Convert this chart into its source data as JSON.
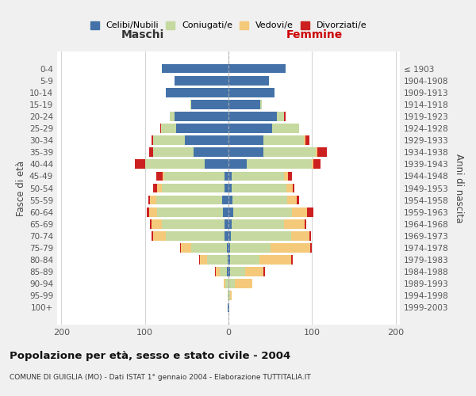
{
  "age_groups": [
    "0-4",
    "5-9",
    "10-14",
    "15-19",
    "20-24",
    "25-29",
    "30-34",
    "35-39",
    "40-44",
    "45-49",
    "50-54",
    "55-59",
    "60-64",
    "65-69",
    "70-74",
    "75-79",
    "80-84",
    "85-89",
    "90-94",
    "95-99",
    "100+"
  ],
  "birth_years": [
    "1999-2003",
    "1994-1998",
    "1989-1993",
    "1984-1988",
    "1979-1983",
    "1974-1978",
    "1969-1973",
    "1964-1968",
    "1959-1963",
    "1954-1958",
    "1949-1953",
    "1944-1948",
    "1939-1943",
    "1934-1938",
    "1929-1933",
    "1924-1928",
    "1919-1923",
    "1914-1918",
    "1909-1913",
    "1904-1908",
    "≤ 1903"
  ],
  "male_celibe": [
    80,
    65,
    75,
    45,
    65,
    63,
    52,
    42,
    28,
    5,
    5,
    8,
    7,
    5,
    5,
    2,
    1,
    2,
    0,
    0,
    1
  ],
  "male_coniugato": [
    0,
    0,
    0,
    1,
    5,
    18,
    38,
    48,
    72,
    72,
    75,
    78,
    78,
    75,
    70,
    43,
    25,
    8,
    4,
    1,
    0
  ],
  "male_vedovo": [
    0,
    0,
    0,
    0,
    0,
    0,
    0,
    0,
    0,
    2,
    5,
    8,
    10,
    12,
    15,
    12,
    8,
    5,
    2,
    0,
    0
  ],
  "male_divorziato": [
    0,
    0,
    0,
    0,
    0,
    1,
    2,
    5,
    12,
    7,
    5,
    2,
    3,
    2,
    2,
    1,
    1,
    1,
    0,
    0,
    0
  ],
  "female_nubile": [
    68,
    48,
    55,
    38,
    58,
    52,
    42,
    42,
    22,
    4,
    4,
    5,
    6,
    4,
    3,
    2,
    2,
    2,
    0,
    0,
    1
  ],
  "female_coniugata": [
    0,
    0,
    0,
    2,
    8,
    32,
    48,
    62,
    78,
    62,
    65,
    65,
    70,
    62,
    72,
    48,
    35,
    18,
    8,
    2,
    0
  ],
  "female_vedova": [
    0,
    0,
    0,
    0,
    0,
    0,
    2,
    2,
    2,
    5,
    8,
    12,
    18,
    25,
    22,
    48,
    38,
    22,
    20,
    2,
    0
  ],
  "female_divorziata": [
    0,
    0,
    0,
    0,
    2,
    0,
    5,
    12,
    8,
    5,
    2,
    2,
    8,
    2,
    2,
    2,
    2,
    2,
    0,
    0,
    0
  ],
  "colors": {
    "celibe": "#4472a8",
    "coniugato": "#c5d9a0",
    "vedovo": "#f5c97a",
    "divorziato": "#cc2020"
  },
  "title": "Popolazione per età, sesso e stato civile - 2004",
  "subtitle": "COMUNE DI GUIGLIA (MO) - Dati ISTAT 1° gennaio 2004 - Elaborazione TUTTITALIA.IT",
  "maschi_label": "Maschi",
  "femmine_label": "Femmine",
  "ylabel_left": "Fasce di età",
  "ylabel_right": "Anni di nascita",
  "legend_labels": [
    "Celibi/Nubili",
    "Coniugati/e",
    "Vedovi/e",
    "Divorziati/e"
  ],
  "xlim": 205,
  "bg_color": "#f0f0f0",
  "plot_bg": "#ffffff"
}
